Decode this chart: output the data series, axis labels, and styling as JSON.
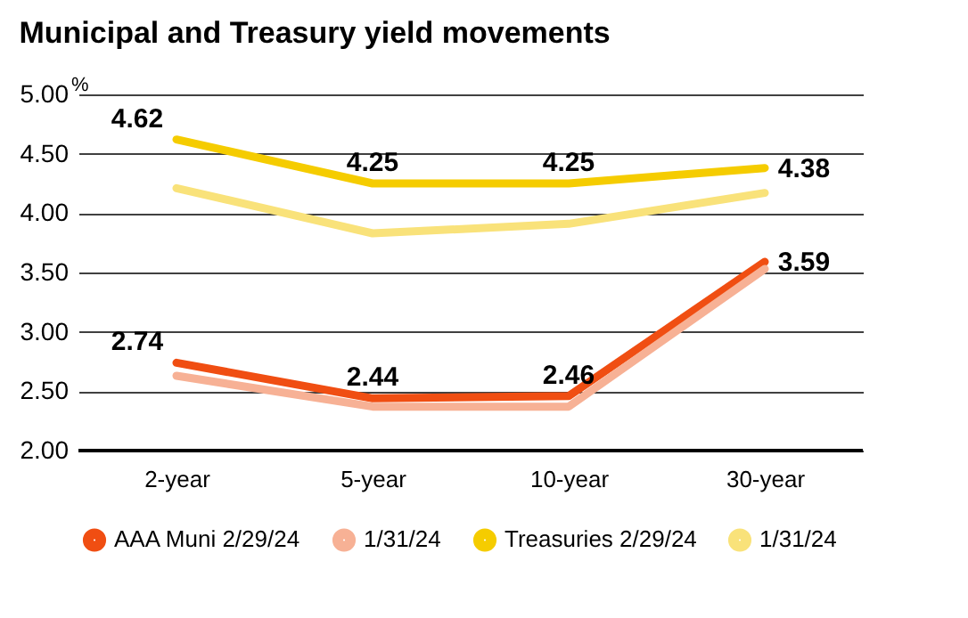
{
  "chart_data": {
    "type": "line",
    "title": "Municipal and Treasury yield movements",
    "ylabel": "%",
    "categories": [
      "2-year",
      "5-year",
      "10-year",
      "30-year"
    ],
    "series": [
      {
        "name": "AAA Muni 2/29/24",
        "color": "#f04e12",
        "values": [
          2.74,
          2.44,
          2.46,
          3.59
        ],
        "value_labels": [
          "2.74",
          "2.44",
          "2.46",
          "3.59"
        ]
      },
      {
        "name": "1/31/24",
        "color": "#f7b195",
        "values": [
          2.63,
          2.37,
          2.37,
          3.53
        ]
      },
      {
        "name": "Treasuries 2/29/24",
        "color": "#f5cc00",
        "values": [
          4.62,
          4.25,
          4.25,
          4.38
        ],
        "value_labels": [
          "4.62",
          "4.25",
          "4.25",
          "4.38"
        ]
      },
      {
        "name": "1/31/24",
        "color": "#f9e27a",
        "values": [
          4.21,
          3.83,
          3.91,
          4.17
        ]
      }
    ],
    "ylim": [
      2.0,
      5.0
    ],
    "yticks": [
      {
        "value": 2,
        "label": "2.00"
      },
      {
        "value": 2.5,
        "label": "2.50"
      },
      {
        "value": 3,
        "label": "3.00"
      },
      {
        "value": 3.5,
        "label": "3.50"
      },
      {
        "value": 4,
        "label": "4.00"
      },
      {
        "value": 4.5,
        "label": "4.50"
      },
      {
        "value": 5,
        "label": "5.00"
      }
    ],
    "grid": "y",
    "legend": "bottom",
    "marker": "none",
    "line_style": "solid"
  }
}
